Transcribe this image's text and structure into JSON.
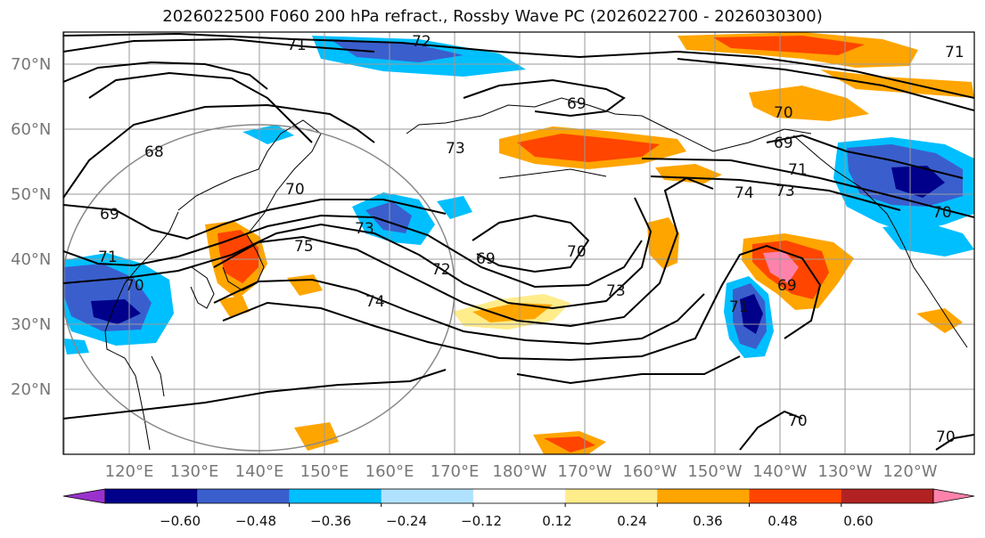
{
  "title": "2026022500 F060 200 hPa refract., Rossby Wave PC (2026022700 - 2026030300)",
  "latitude_labels": [
    "70°N",
    "60°N",
    "50°N",
    "40°N",
    "30°N",
    "20°N"
  ],
  "longitude_labels": [
    "120°E",
    "130°E",
    "140°E",
    "150°E",
    "160°E",
    "170°E",
    "180°W",
    "170°W",
    "160°W",
    "150°W",
    "140°W",
    "130°W",
    "120°W"
  ],
  "contour_labels": [
    "72",
    "71",
    "71",
    "73",
    "70",
    "69",
    "68",
    "69",
    "70",
    "69",
    "71",
    "73",
    "74",
    "70",
    "75",
    "73",
    "74",
    "71",
    "70",
    "72",
    "69",
    "70",
    "73",
    "69",
    "70",
    "70",
    "71"
  ],
  "colorbar": {
    "colors": [
      "#9932CC",
      "#00008B",
      "#3A5FCD",
      "#00BFFF",
      "#B0E2FF",
      "#FFFFFF",
      "#FFEC8B",
      "#FFA500",
      "#FF4500",
      "#B22222",
      "#FF82AB"
    ],
    "tick_labels": [
      "−0.60",
      "−0.48",
      "−0.36",
      "−0.24",
      "−0.12",
      "0.12",
      "0.24",
      "0.36",
      "0.48",
      "0.60"
    ]
  }
}
